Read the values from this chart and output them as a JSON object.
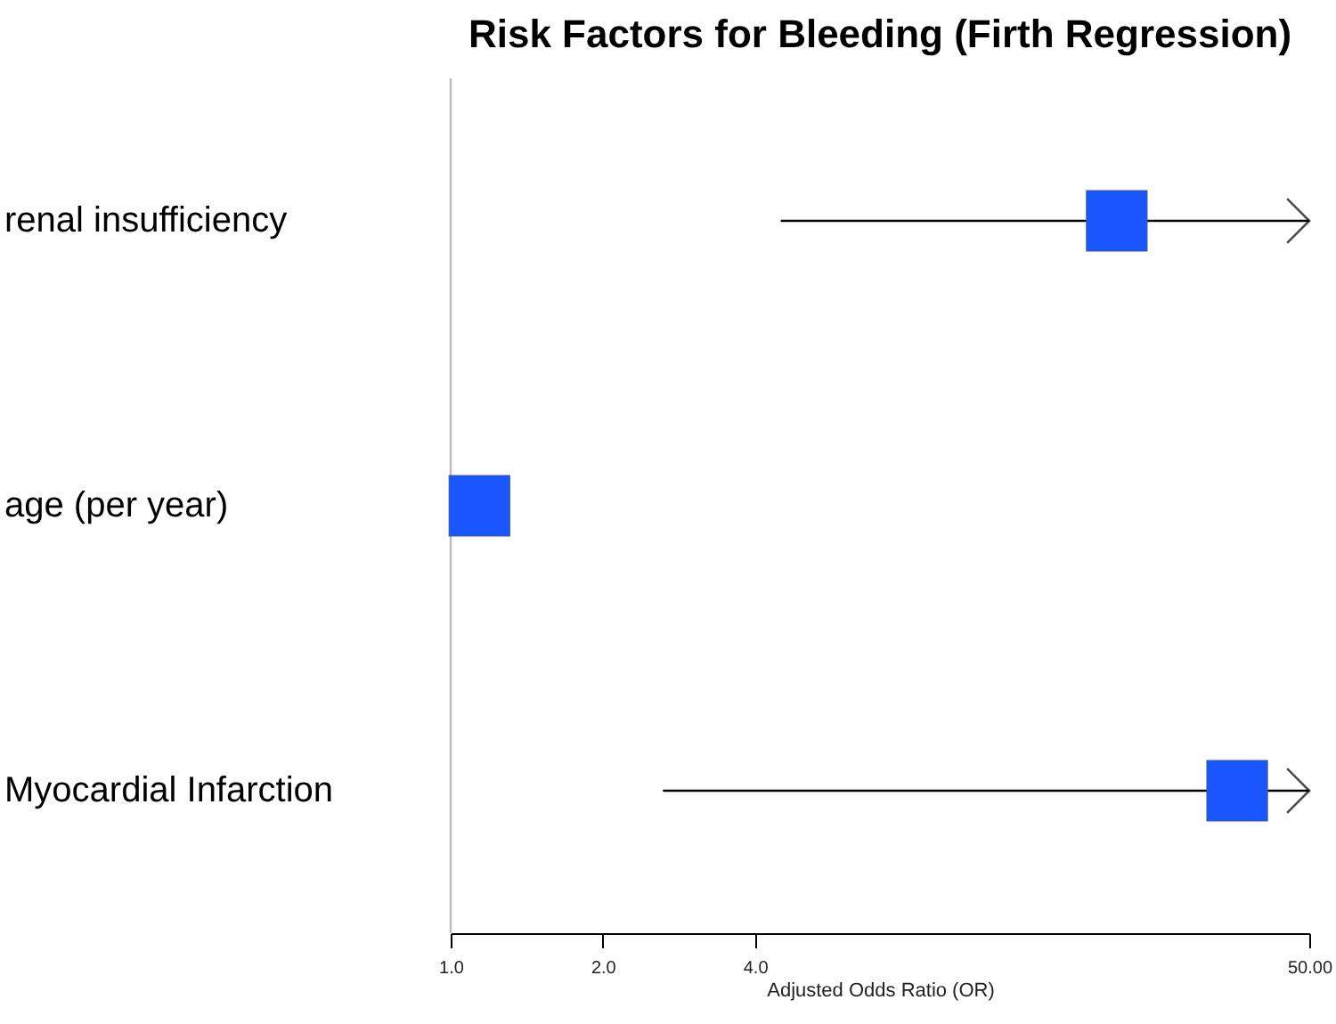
{
  "chart_data": {
    "type": "scatter",
    "title": "Risk Factors for Bleeding (Firth Regression)",
    "xlabel": "Adjusted Odds Ratio (OR)",
    "orientation": "horizontal",
    "log": "x",
    "marker": "square",
    "categories": [
      "renal  insufficiency",
      "age (per year)",
      "Myocardial  Infarction"
    ],
    "color": "#1a56ff",
    "values": [
      20.8,
      1.14,
      36
    ],
    "errors": [
      [
        4.5,
        50
      ],
      null,
      [
        2.63,
        50
      ]
    ],
    "xlim": [
      1,
      50
    ],
    "xticks": [
      {
        "value": 1,
        "label": "1.0"
      },
      {
        "value": 2,
        "label": "2.0"
      },
      {
        "value": 4,
        "label": "4.0"
      },
      {
        "value": 50,
        "label": "50.00"
      }
    ],
    "ref_lines": [
      {
        "axis": "x",
        "value": 1,
        "color": "#bbbbbb"
      }
    ]
  }
}
